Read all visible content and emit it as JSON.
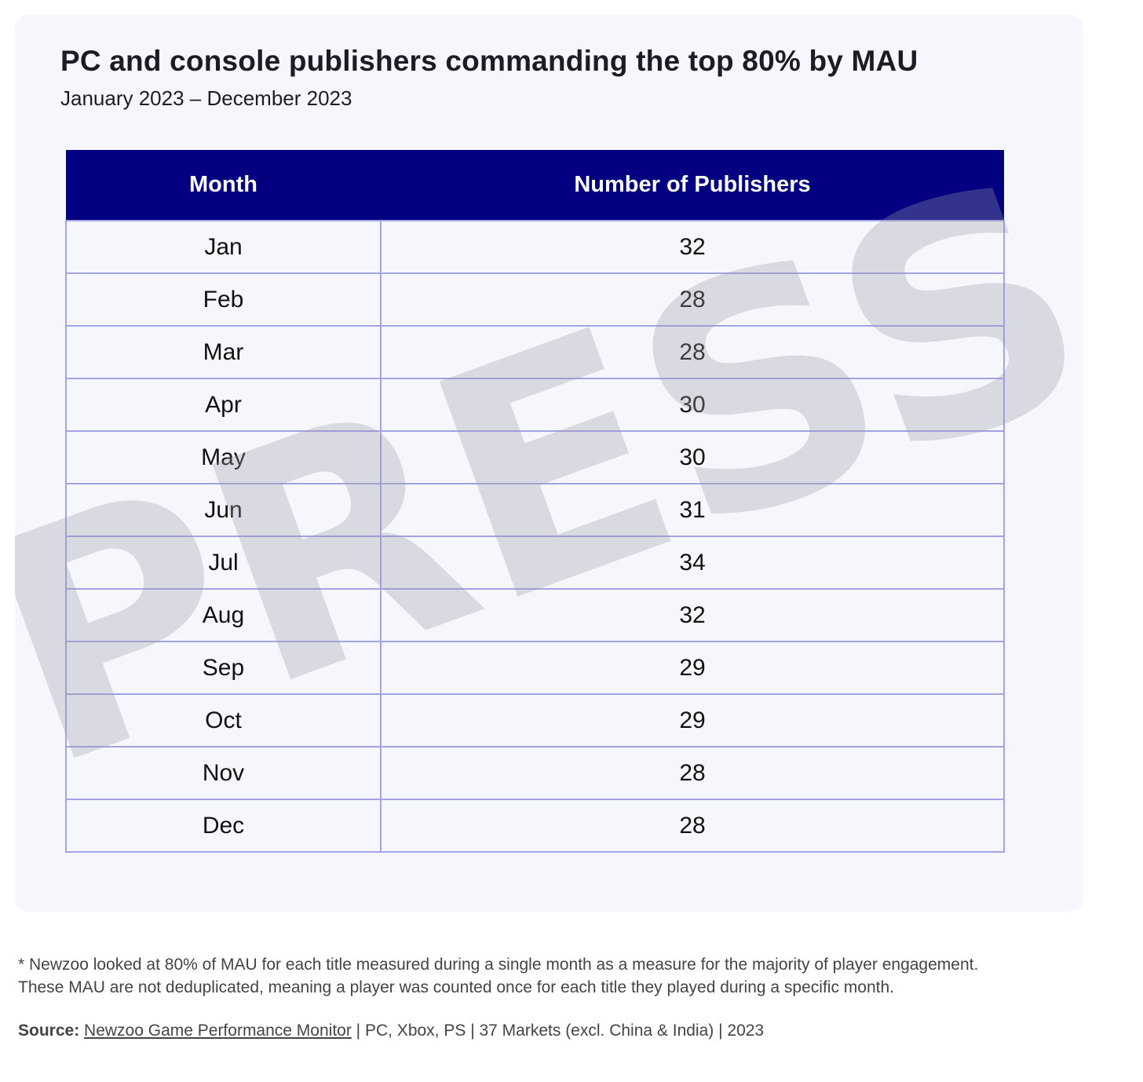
{
  "header": {
    "title": "PC and console publishers commanding the top 80% by MAU",
    "subtitle": "January 2023 – December 2023"
  },
  "watermark": "PRESS",
  "chart_data": {
    "type": "table",
    "columns": [
      "Month",
      "Number of Publishers"
    ],
    "rows": [
      {
        "month": "Jan",
        "publishers": 32
      },
      {
        "month": "Feb",
        "publishers": 28
      },
      {
        "month": "Mar",
        "publishers": 28
      },
      {
        "month": "Apr",
        "publishers": 30
      },
      {
        "month": "May",
        "publishers": 30
      },
      {
        "month": "Jun",
        "publishers": 31
      },
      {
        "month": "Jul",
        "publishers": 34
      },
      {
        "month": "Aug",
        "publishers": 32
      },
      {
        "month": "Sep",
        "publishers": 29
      },
      {
        "month": "Oct",
        "publishers": 29
      },
      {
        "month": "Nov",
        "publishers": 28
      },
      {
        "month": "Dec",
        "publishers": 28
      }
    ]
  },
  "footnote": {
    "line1": "* Newzoo looked at 80% of MAU for each title measured during a single month as a measure for the majority of player engagement.",
    "line2": "These MAU are not deduplicated, meaning a player was counted once for each title they played during a specific month."
  },
  "source": {
    "label": "Source:",
    "link_text": "Newzoo Game Performance Monitor",
    "rest": " | PC, Xbox, PS | 37 Markets (excl. China & India) | 2023"
  },
  "colors": {
    "header_bg": "#020080",
    "grid_line": "#a3a3e3",
    "card_bg": "#f6f7fc"
  }
}
